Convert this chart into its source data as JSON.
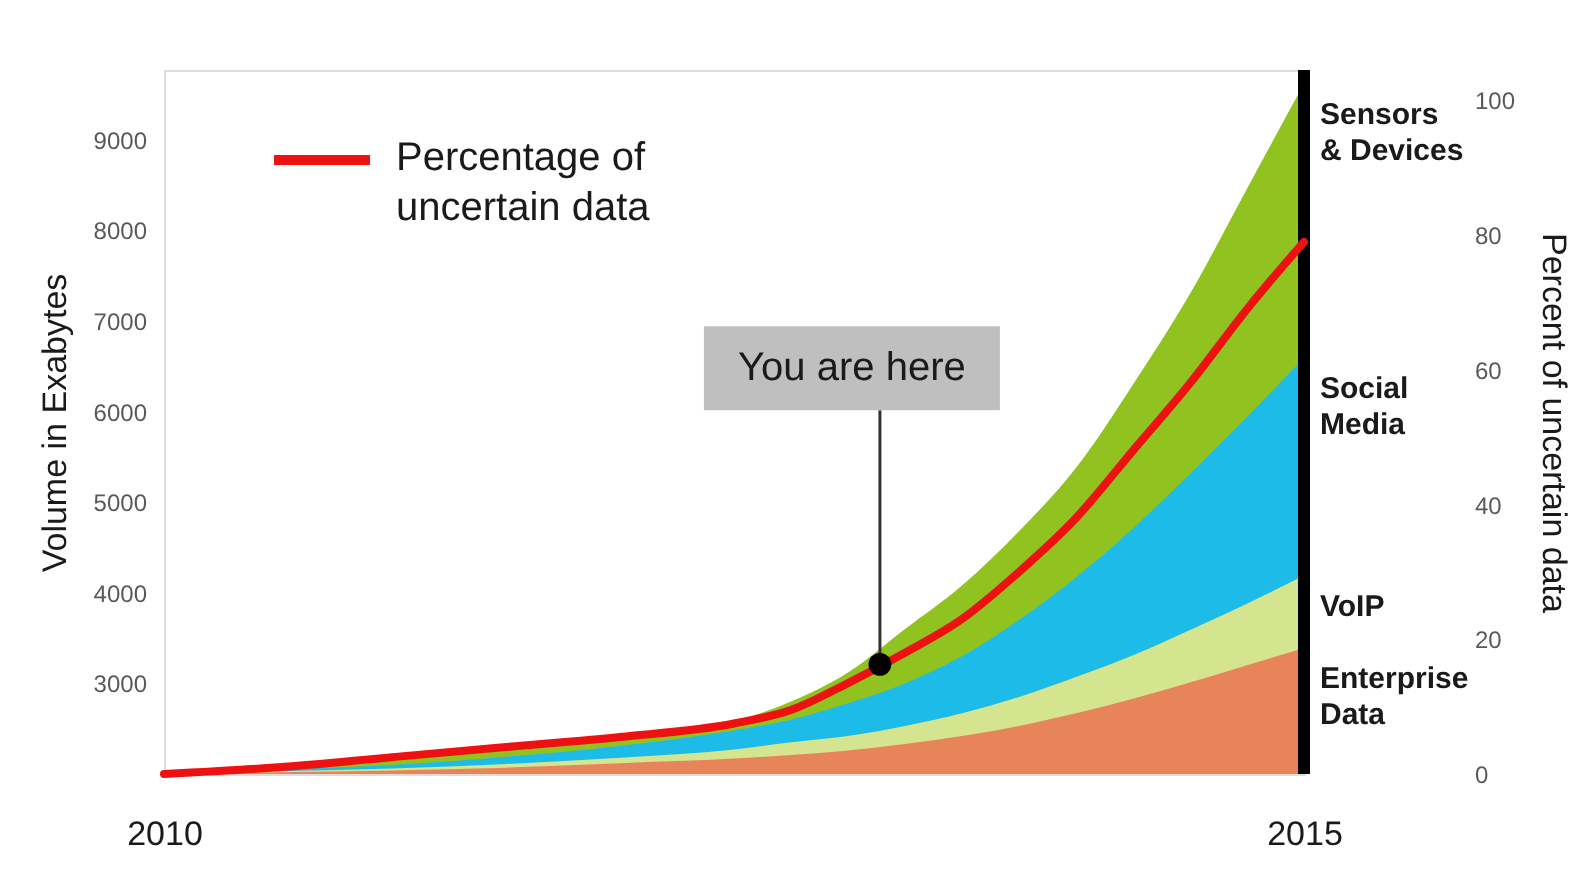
{
  "chart_data": {
    "type": "area",
    "x": [
      2010,
      2010.5,
      2011,
      2011.5,
      2012,
      2012.5,
      2012.75,
      2013,
      2013.25,
      2013.5,
      2013.75,
      2014,
      2014.25,
      2014.5,
      2014.75,
      2015
    ],
    "xlim": [
      2010,
      2015
    ],
    "xticks": [
      2010,
      2015
    ],
    "ylim": [
      2000,
      9770
    ],
    "yticks": [
      3000,
      4000,
      5000,
      6000,
      7000,
      8000,
      9000
    ],
    "ylabel": "Volume in Exabytes",
    "y2lim": [
      0,
      104.5
    ],
    "y2ticks": [
      0,
      20,
      40,
      60,
      80,
      100
    ],
    "y2label": "Percent of uncertain data",
    "series": [
      {
        "name": "Sensors & Devices",
        "color": "#90c31f",
        "values": [
          2000,
          2070,
          2170,
          2280,
          2400,
          2580,
          2800,
          3120,
          3600,
          4080,
          4680,
          5380,
          6300,
          7300,
          8460,
          9620
        ]
      },
      {
        "name": "Social Media",
        "color": "#1dbbe8",
        "values": [
          2000,
          2050,
          2100,
          2190,
          2310,
          2480,
          2600,
          2780,
          3000,
          3300,
          3700,
          4170,
          4710,
          5310,
          5940,
          6590
        ]
      },
      {
        "name": "VoIP",
        "color": "#d4e48f",
        "values": [
          2000,
          2030,
          2060,
          2110,
          2180,
          2270,
          2350,
          2420,
          2530,
          2670,
          2850,
          3070,
          3310,
          3590,
          3880,
          4190
        ]
      },
      {
        "name": "Enterprise Data",
        "color": "#e8845a",
        "values": [
          2000,
          2020,
          2040,
          2070,
          2120,
          2170,
          2210,
          2260,
          2330,
          2420,
          2530,
          2670,
          2830,
          3010,
          3200,
          3390
        ]
      },
      {
        "name": "Percentage of uncertain data",
        "type": "line",
        "axis": "y2",
        "color": "#ee1111",
        "values": [
          0,
          1,
          2.5,
          4,
          5.5,
          7.5,
          9.5,
          13.5,
          18,
          23,
          30,
          38,
          48,
          58,
          69,
          79
        ]
      }
    ],
    "ref_lines": [
      {
        "axis": "x",
        "value": 2015,
        "color": "#000000"
      }
    ],
    "annotations": [
      {
        "text": "You are here",
        "x": 2013.14,
        "y": 3210
      }
    ],
    "legend": "top left"
  }
}
